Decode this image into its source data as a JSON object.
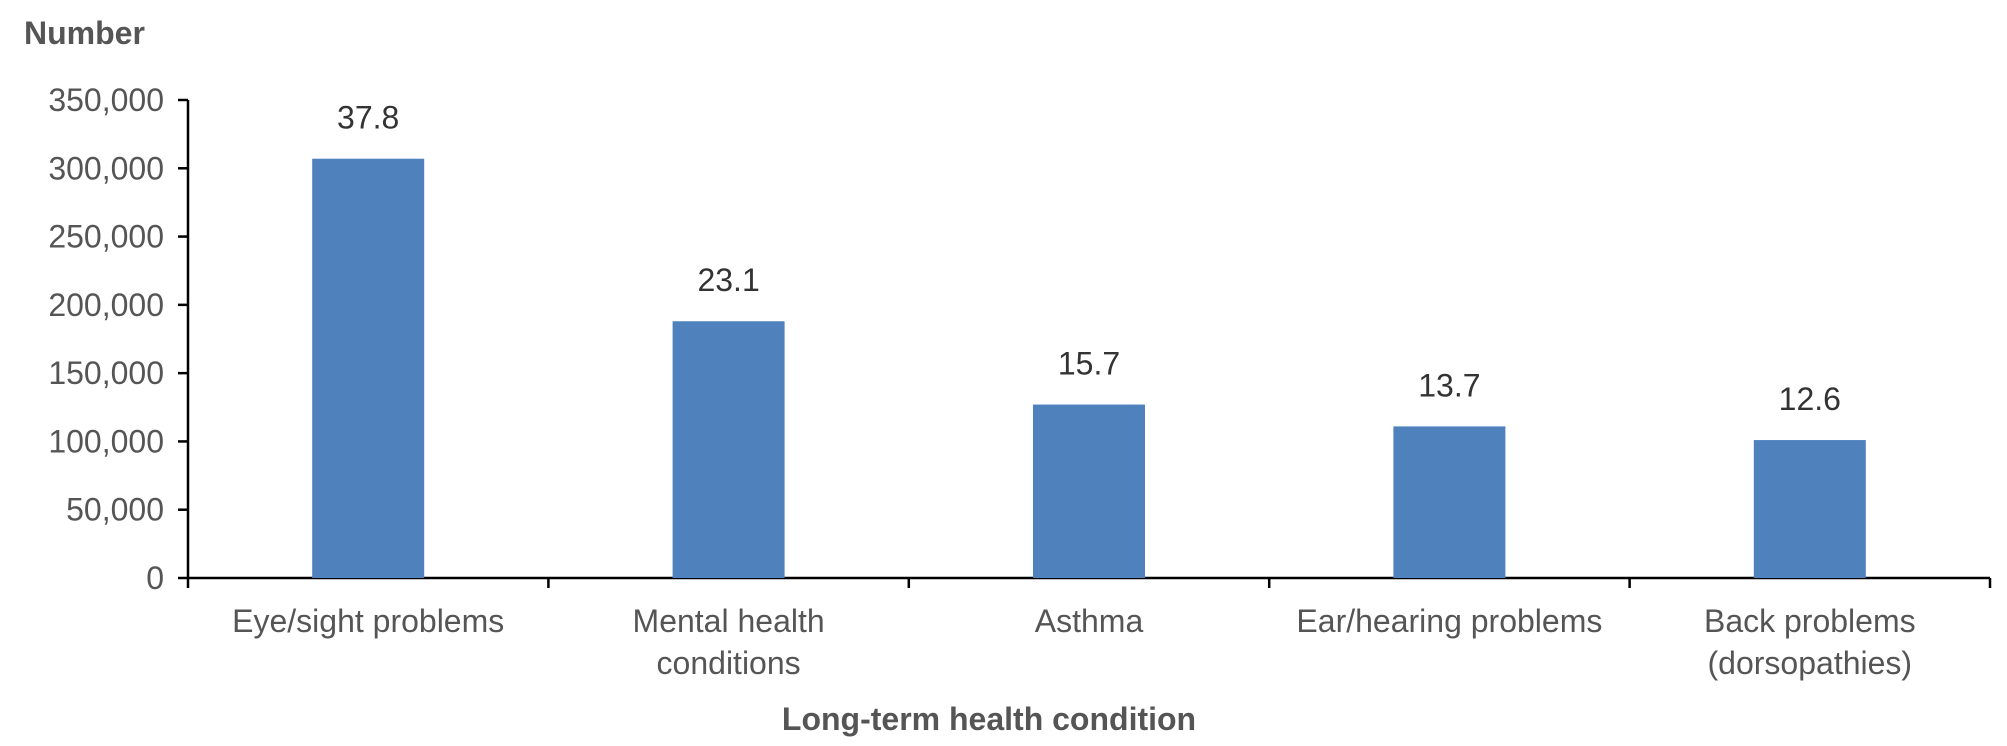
{
  "chart_data": {
    "type": "bar",
    "title": "",
    "ylabel": "Number",
    "xlabel": "Long-term health condition",
    "categories": [
      [
        "Eye/sight problems"
      ],
      [
        "Mental health",
        "conditions"
      ],
      [
        "Asthma"
      ],
      [
        "Ear/hearing problems"
      ],
      [
        "Back problems",
        "(dorsopathies)"
      ]
    ],
    "values": [
      307000,
      188000,
      127000,
      111000,
      101000
    ],
    "data_labels": [
      "37.8",
      "23.1",
      "15.7",
      "13.7",
      "12.6"
    ],
    "ylim": [
      0,
      350000
    ],
    "y_ticks": [
      0,
      50000,
      100000,
      150000,
      200000,
      250000,
      300000,
      350000
    ],
    "y_tick_labels": [
      "0",
      "50,000",
      "100,000",
      "150,000",
      "200,000",
      "250,000",
      "300,000",
      "350,000"
    ],
    "grid": false,
    "legend": "none",
    "bar_color": "#4F81BD"
  }
}
